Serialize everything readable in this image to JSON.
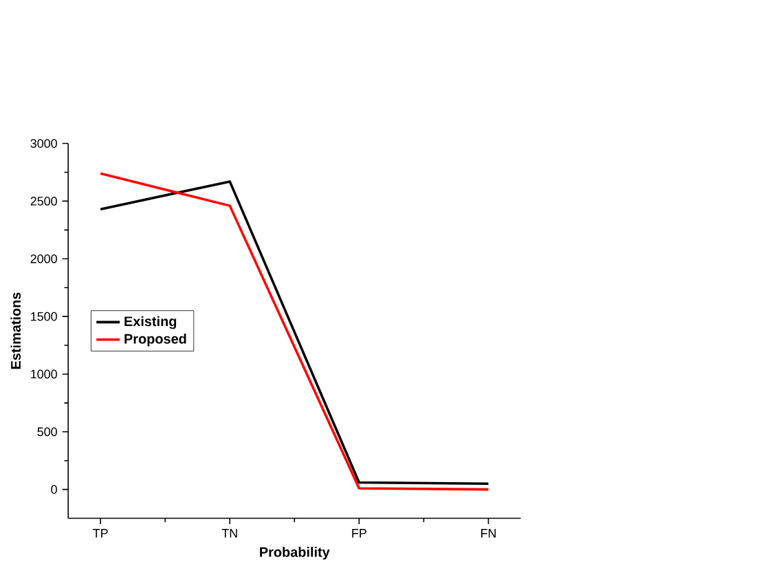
{
  "chart_data": {
    "type": "line",
    "xlabel": "Probability",
    "ylabel": "Estimations",
    "categories": [
      "TP",
      "TN",
      "FP",
      "FN"
    ],
    "series": [
      {
        "name": "Existing",
        "color": "#000000",
        "values": [
          2430,
          2670,
          60,
          50
        ]
      },
      {
        "name": "Proposed",
        "color": "#ff0000",
        "values": [
          2740,
          2460,
          10,
          0
        ]
      }
    ],
    "ylim": [
      -250,
      3000
    ],
    "yticks": [
      0,
      500,
      1000,
      1500,
      2000,
      2500,
      3000
    ],
    "legend": "left",
    "marker": "none",
    "line_style": "solid",
    "grid": false
  }
}
